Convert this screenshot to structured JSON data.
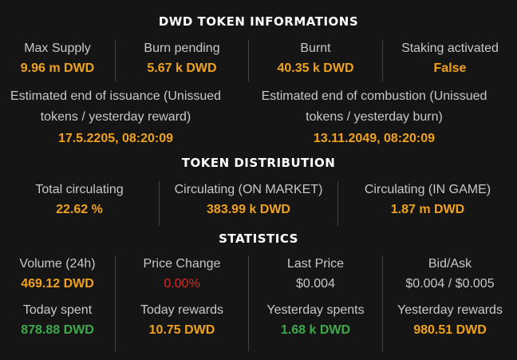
{
  "sections": {
    "token_info": "DWD TOKEN INFORMATIONS",
    "distribution": "TOKEN DISTRIBUTION",
    "statistics": "STATISTICS"
  },
  "token_info": {
    "max_supply": {
      "label": "Max Supply",
      "value": "9.96 m DWD"
    },
    "burn_pending": {
      "label": "Burn pending",
      "value": "5.67 k DWD"
    },
    "burnt": {
      "label": "Burnt",
      "value": "40.35 k DWD"
    },
    "staking": {
      "label": "Staking activated",
      "value": "False"
    },
    "end_issuance": {
      "label_line1": "Estimated end of issuance (Unissued",
      "label_line2": "tokens / yesterday reward)",
      "value": "17.5.2205, 08:20:09"
    },
    "end_combustion": {
      "label_line1": "Estimated end of combustion (Unissued",
      "label_line2": "tokens / yesterday burn)",
      "value": "13.11.2049, 08:20:09"
    }
  },
  "distribution": {
    "total": {
      "label": "Total circulating",
      "value": "22.62 %"
    },
    "market": {
      "label": "Circulating (ON MARKET)",
      "value": "383.99 k DWD"
    },
    "game": {
      "label": "Circulating (IN GAME)",
      "value": "1.87 m DWD"
    }
  },
  "statistics": {
    "volume": {
      "label": "Volume (24h)",
      "value": "469.12 DWD"
    },
    "price_change": {
      "label": "Price Change",
      "value": "0.00%"
    },
    "last_price": {
      "label": "Last Price",
      "value": "$0.004"
    },
    "bid_ask": {
      "label": "Bid/Ask",
      "value": "$0.004 / $0.005"
    },
    "today_spent": {
      "label": "Today spent",
      "value": "878.88 DWD"
    },
    "today_rewards": {
      "label": "Today rewards",
      "value": "10.75 DWD"
    },
    "yesterday_spents": {
      "label": "Yesterday spents",
      "value": "1.68 k DWD"
    },
    "yesterday_rewards": {
      "label": "Yesterday rewards",
      "value": "980.51 DWD"
    }
  },
  "colors": {
    "background": "#151515",
    "accent": "#f0a21c",
    "negative": "#d62a25",
    "positive": "#3ea94a"
  }
}
